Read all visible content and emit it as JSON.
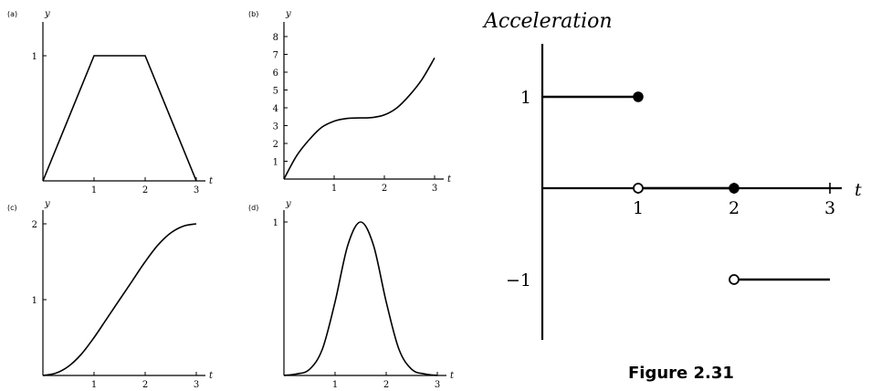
{
  "chart_data": [
    {
      "panel": "(a)",
      "type": "line",
      "ylabel": "y",
      "xlabel": "t",
      "x_ticks": [
        "1",
        "2",
        "3"
      ],
      "y_ticks": [
        "1"
      ],
      "xlim": [
        0,
        3
      ],
      "ylim": [
        0,
        1.25
      ],
      "x": [
        0,
        1,
        2,
        3
      ],
      "y": [
        0,
        1,
        1,
        0
      ]
    },
    {
      "panel": "(b)",
      "type": "line",
      "ylabel": "y",
      "xlabel": "t",
      "x_ticks": [
        "1",
        "2",
        "3"
      ],
      "y_ticks": [
        "1",
        "2",
        "3",
        "4",
        "5",
        "6",
        "7",
        "8"
      ],
      "xlim": [
        0,
        3
      ],
      "ylim": [
        0,
        8.5
      ],
      "x": [
        0,
        0.25,
        0.5,
        0.75,
        1.0,
        1.25,
        1.5,
        1.75,
        2.0,
        2.25,
        2.5,
        2.75,
        3.0
      ],
      "y": [
        0,
        1.3,
        2.2,
        2.9,
        3.25,
        3.4,
        3.43,
        3.45,
        3.6,
        4.0,
        4.7,
        5.6,
        6.8
      ]
    },
    {
      "panel": "(c)",
      "type": "line",
      "ylabel": "y",
      "xlabel": "t",
      "x_ticks": [
        "1",
        "2",
        "3"
      ],
      "y_ticks": [
        "1",
        "2"
      ],
      "xlim": [
        0,
        3
      ],
      "ylim": [
        0,
        2.2
      ],
      "x": [
        0,
        0.25,
        0.5,
        0.75,
        1.0,
        1.25,
        1.5,
        1.75,
        2.0,
        2.25,
        2.5,
        2.75,
        3.0
      ],
      "y": [
        0,
        0.03,
        0.12,
        0.28,
        0.5,
        0.75,
        1.0,
        1.25,
        1.5,
        1.72,
        1.88,
        1.97,
        2.0
      ]
    },
    {
      "panel": "(d)",
      "type": "line",
      "ylabel": "y",
      "xlabel": "t",
      "x_ticks": [
        "1",
        "2",
        "3"
      ],
      "y_ticks": [
        "1"
      ],
      "xlim": [
        0,
        3
      ],
      "ylim": [
        0,
        1.1
      ],
      "x": [
        0,
        0.25,
        0.5,
        0.75,
        1.0,
        1.25,
        1.5,
        1.75,
        2.0,
        2.25,
        2.5,
        2.75,
        3.0
      ],
      "y": [
        0,
        0.01,
        0.04,
        0.17,
        0.48,
        0.85,
        1.0,
        0.85,
        0.48,
        0.17,
        0.04,
        0.01,
        0
      ]
    },
    {
      "panel": "Acceleration",
      "type": "line",
      "title": "Acceleration",
      "xlabel": "t",
      "x_ticks": [
        "1",
        "2",
        "3"
      ],
      "y_ticks": [
        "1",
        "−1"
      ],
      "xlim": [
        0,
        3
      ],
      "ylim": [
        -1,
        1
      ],
      "segments": [
        {
          "x": [
            0,
            1
          ],
          "y": [
            1,
            1
          ],
          "end_filled": true
        },
        {
          "x": [
            1,
            2
          ],
          "y": [
            0,
            0
          ],
          "start_open": true,
          "end_filled": true
        },
        {
          "x": [
            2,
            3
          ],
          "y": [
            -1,
            -1
          ],
          "start_open": true
        }
      ]
    }
  ],
  "figure_caption": "Figure 2.31"
}
